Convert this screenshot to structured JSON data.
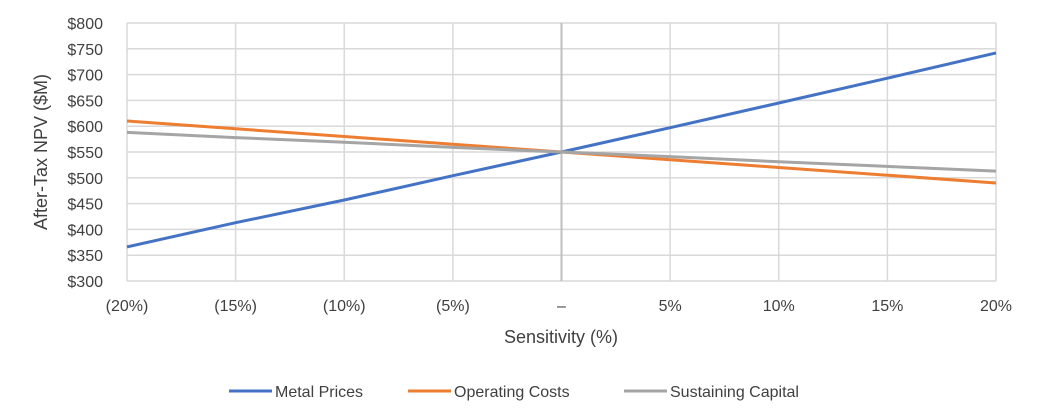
{
  "chart_data": {
    "type": "line",
    "xlabel": "Sensitivity (%)",
    "ylabel": "After-Tax NPV ($M)",
    "x_tick_labels": [
      "(20%)",
      "(15%)",
      "(10%)",
      "(5%)",
      "–",
      "5%",
      "10%",
      "15%",
      "20%"
    ],
    "y_tick_labels": [
      "$300",
      "$350",
      "$400",
      "$450",
      "$500",
      "$550",
      "$600",
      "$650",
      "$700",
      "$750",
      "$800"
    ],
    "x": [
      -20,
      -15,
      -10,
      -5,
      0,
      5,
      10,
      15,
      20
    ],
    "xlim": [
      -20,
      20
    ],
    "ylim": [
      300,
      800
    ],
    "y_ticks": [
      300,
      350,
      400,
      450,
      500,
      550,
      600,
      650,
      700,
      750,
      800
    ],
    "grid": true,
    "legend_position": "bottom",
    "series": [
      {
        "name": "Metal Prices",
        "color": "#4472C4",
        "values": [
          366,
          413,
          457,
          504,
          550,
          597,
          645,
          693,
          742
        ]
      },
      {
        "name": "Operating Costs",
        "color": "#ED7D31",
        "values": [
          610,
          595,
          580,
          565,
          550,
          535,
          520,
          505,
          490
        ]
      },
      {
        "name": "Sustaining Capital",
        "color": "#A5A5A5",
        "values": [
          588,
          578,
          569,
          559,
          550,
          541,
          531,
          522,
          513
        ]
      }
    ]
  }
}
